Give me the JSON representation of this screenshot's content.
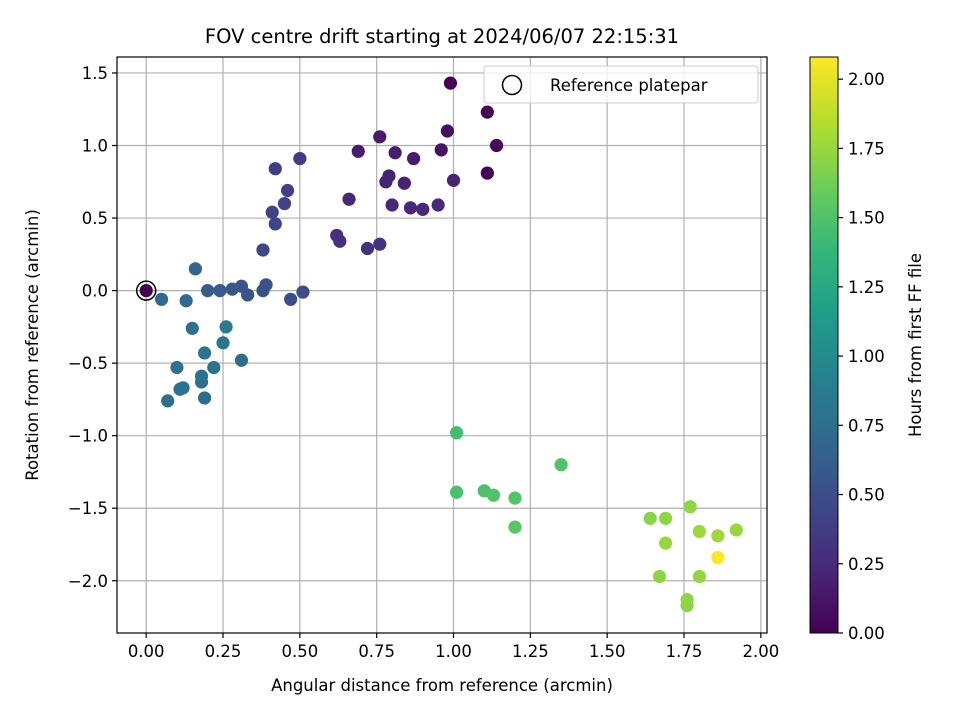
{
  "chart_data": {
    "type": "scatter",
    "title": "FOV centre drift starting at 2024/06/07 22:15:31",
    "xlabel": "Angular distance from reference (arcmin)",
    "ylabel": "Rotation from reference (arcmin)",
    "xlim": [
      -0.095,
      2.02
    ],
    "ylim": [
      -2.36,
      1.61
    ],
    "xticks": [
      "0.00",
      "0.25",
      "0.50",
      "0.75",
      "1.00",
      "1.25",
      "1.50",
      "1.75",
      "2.00"
    ],
    "xtick_values": [
      0,
      0.25,
      0.5,
      0.75,
      1.0,
      1.25,
      1.5,
      1.75,
      2.0
    ],
    "yticks": [
      "1.5",
      "1.0",
      "0.5",
      "0.0",
      "−0.5",
      "−1.0",
      "−1.5",
      "−2.0"
    ],
    "ytick_values": [
      1.5,
      1.0,
      0.5,
      0.0,
      -0.5,
      -1.0,
      -1.5,
      -2.0
    ],
    "grid": true,
    "legend": {
      "position": "top-right",
      "label": "Reference platepar",
      "marker": "hollow-circle"
    },
    "reference_point": {
      "x": 0.0,
      "y": 0.0
    },
    "colorbar": {
      "label": "Hours from first FF file",
      "range": [
        0.0,
        2.08
      ],
      "ticks": [
        "0.00",
        "0.25",
        "0.50",
        "0.75",
        "1.00",
        "1.25",
        "1.50",
        "1.75",
        "2.00"
      ],
      "tick_values": [
        0,
        0.25,
        0.5,
        0.75,
        1.0,
        1.25,
        1.5,
        1.75,
        2.0
      ],
      "colormap": "viridis",
      "colormap_stops": [
        "#440154",
        "#482878",
        "#3e4989",
        "#31688e",
        "#26828e",
        "#1f9e89",
        "#35b779",
        "#6ece58",
        "#b5de2b",
        "#fde725"
      ]
    },
    "points": [
      {
        "x": 0.0,
        "y": 0.0,
        "c": 0.0
      },
      {
        "x": 0.99,
        "y": 1.43,
        "c": 0.02
      },
      {
        "x": 1.11,
        "y": 1.23,
        "c": 0.03
      },
      {
        "x": 1.14,
        "y": 1.0,
        "c": 0.04
      },
      {
        "x": 1.11,
        "y": 0.81,
        "c": 0.03
      },
      {
        "x": 0.98,
        "y": 1.1,
        "c": 0.08
      },
      {
        "x": 0.96,
        "y": 0.97,
        "c": 0.1
      },
      {
        "x": 0.76,
        "y": 1.06,
        "c": 0.15
      },
      {
        "x": 0.69,
        "y": 0.96,
        "c": 0.16
      },
      {
        "x": 0.81,
        "y": 0.95,
        "c": 0.17
      },
      {
        "x": 0.87,
        "y": 0.91,
        "c": 0.16
      },
      {
        "x": 0.79,
        "y": 0.79,
        "c": 0.19
      },
      {
        "x": 0.78,
        "y": 0.75,
        "c": 0.2
      },
      {
        "x": 0.84,
        "y": 0.74,
        "c": 0.2
      },
      {
        "x": 1.0,
        "y": 0.76,
        "c": 0.22
      },
      {
        "x": 0.66,
        "y": 0.63,
        "c": 0.23
      },
      {
        "x": 0.8,
        "y": 0.59,
        "c": 0.24
      },
      {
        "x": 0.86,
        "y": 0.57,
        "c": 0.23
      },
      {
        "x": 0.9,
        "y": 0.56,
        "c": 0.24
      },
      {
        "x": 0.95,
        "y": 0.59,
        "c": 0.25
      },
      {
        "x": 0.62,
        "y": 0.38,
        "c": 0.28
      },
      {
        "x": 0.63,
        "y": 0.34,
        "c": 0.29
      },
      {
        "x": 0.72,
        "y": 0.29,
        "c": 0.3
      },
      {
        "x": 0.76,
        "y": 0.32,
        "c": 0.31
      },
      {
        "x": 0.5,
        "y": 0.91,
        "c": 0.38
      },
      {
        "x": 0.42,
        "y": 0.84,
        "c": 0.39
      },
      {
        "x": 0.46,
        "y": 0.69,
        "c": 0.4
      },
      {
        "x": 0.45,
        "y": 0.6,
        "c": 0.41
      },
      {
        "x": 0.41,
        "y": 0.54,
        "c": 0.42
      },
      {
        "x": 0.42,
        "y": 0.46,
        "c": 0.43
      },
      {
        "x": 0.38,
        "y": 0.28,
        "c": 0.45
      },
      {
        "x": 0.51,
        "y": -0.01,
        "c": 0.48
      },
      {
        "x": 0.47,
        "y": -0.06,
        "c": 0.5
      },
      {
        "x": 0.39,
        "y": 0.04,
        "c": 0.52
      },
      {
        "x": 0.38,
        "y": 0.0,
        "c": 0.53
      },
      {
        "x": 0.33,
        "y": -0.03,
        "c": 0.54
      },
      {
        "x": 0.31,
        "y": 0.03,
        "c": 0.55
      },
      {
        "x": 0.28,
        "y": 0.01,
        "c": 0.57
      },
      {
        "x": 0.24,
        "y": 0.0,
        "c": 0.6
      },
      {
        "x": 0.2,
        "y": 0.0,
        "c": 0.62
      },
      {
        "x": 0.16,
        "y": 0.15,
        "c": 0.66
      },
      {
        "x": 0.05,
        "y": -0.06,
        "c": 0.7
      },
      {
        "x": 0.13,
        "y": -0.07,
        "c": 0.72
      },
      {
        "x": 0.15,
        "y": -0.26,
        "c": 0.76
      },
      {
        "x": 0.31,
        "y": -0.48,
        "c": 0.74
      },
      {
        "x": 0.26,
        "y": -0.25,
        "c": 0.85
      },
      {
        "x": 0.25,
        "y": -0.36,
        "c": 0.82
      },
      {
        "x": 0.19,
        "y": -0.43,
        "c": 0.8
      },
      {
        "x": 0.22,
        "y": -0.53,
        "c": 0.79
      },
      {
        "x": 0.1,
        "y": -0.53,
        "c": 0.78
      },
      {
        "x": 0.18,
        "y": -0.59,
        "c": 0.77
      },
      {
        "x": 0.18,
        "y": -0.63,
        "c": 0.76
      },
      {
        "x": 0.12,
        "y": -0.67,
        "c": 0.77
      },
      {
        "x": 0.11,
        "y": -0.68,
        "c": 0.78
      },
      {
        "x": 0.07,
        "y": -0.76,
        "c": 0.75
      },
      {
        "x": 0.19,
        "y": -0.74,
        "c": 0.74
      },
      {
        "x": 1.01,
        "y": -0.98,
        "c": 1.45
      },
      {
        "x": 1.35,
        "y": -1.2,
        "c": 1.5
      },
      {
        "x": 1.01,
        "y": -1.39,
        "c": 1.47
      },
      {
        "x": 1.1,
        "y": -1.38,
        "c": 1.48
      },
      {
        "x": 1.13,
        "y": -1.41,
        "c": 1.5
      },
      {
        "x": 1.2,
        "y": -1.43,
        "c": 1.51
      },
      {
        "x": 1.2,
        "y": -1.63,
        "c": 1.53
      },
      {
        "x": 1.64,
        "y": -1.57,
        "c": 1.7
      },
      {
        "x": 1.69,
        "y": -1.57,
        "c": 1.72
      },
      {
        "x": 1.77,
        "y": -1.49,
        "c": 1.73
      },
      {
        "x": 1.92,
        "y": -1.65,
        "c": 1.75
      },
      {
        "x": 1.8,
        "y": -1.66,
        "c": 1.76
      },
      {
        "x": 1.86,
        "y": -1.69,
        "c": 1.77
      },
      {
        "x": 1.69,
        "y": -1.74,
        "c": 1.75
      },
      {
        "x": 1.86,
        "y": -1.84,
        "c": 2.07
      },
      {
        "x": 1.67,
        "y": -1.97,
        "c": 1.72
      },
      {
        "x": 1.8,
        "y": -1.97,
        "c": 1.74
      },
      {
        "x": 1.76,
        "y": -2.13,
        "c": 1.73
      },
      {
        "x": 1.76,
        "y": -2.17,
        "c": 1.72
      }
    ]
  }
}
